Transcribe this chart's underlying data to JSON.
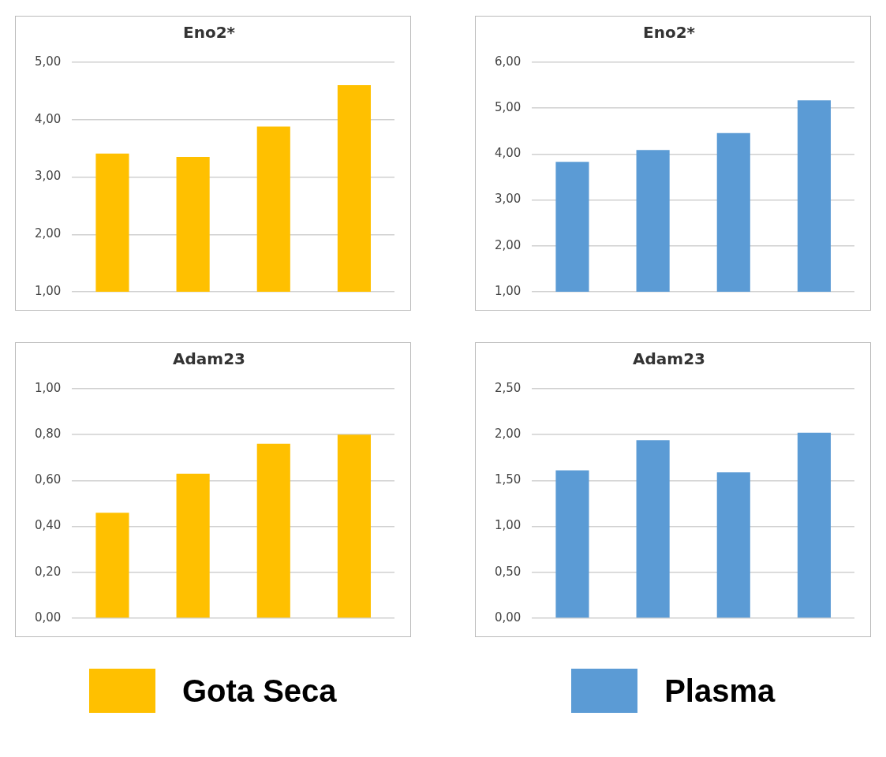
{
  "chart_data": [
    {
      "type": "bar",
      "title": "Eno2*",
      "categories": [
        null,
        null,
        null,
        null
      ],
      "series": [
        {
          "color": "#ffc000",
          "values": [
            3.41,
            3.35,
            3.88,
            4.6
          ]
        }
      ],
      "ylim": [
        1,
        5
      ],
      "yticks": [
        {
          "value": 1,
          "label": "1,00"
        },
        {
          "value": 2,
          "label": "2,00"
        },
        {
          "value": 3,
          "label": "3,00"
        },
        {
          "value": 4,
          "label": "4,00"
        },
        {
          "value": 5,
          "label": "5,00"
        }
      ],
      "grid": "y"
    },
    {
      "type": "bar",
      "title": "Eno2*",
      "categories": [
        null,
        null,
        null,
        null
      ],
      "series": [
        {
          "color": "#5b9bd5",
          "values": [
            3.83,
            4.09,
            4.46,
            5.17
          ]
        }
      ],
      "ylim": [
        1,
        6
      ],
      "yticks": [
        {
          "value": 1,
          "label": "1,00"
        },
        {
          "value": 2,
          "label": "2,00"
        },
        {
          "value": 3,
          "label": "3,00"
        },
        {
          "value": 4,
          "label": "4,00"
        },
        {
          "value": 5,
          "label": "5,00"
        },
        {
          "value": 6,
          "label": "6,00"
        }
      ],
      "grid": "y"
    },
    {
      "type": "bar",
      "title": "Adam23",
      "categories": [
        null,
        null,
        null,
        null
      ],
      "series": [
        {
          "name": "Gota Seca",
          "color": "#ffc000",
          "values": [
            0.46,
            0.63,
            0.76,
            0.8
          ]
        }
      ],
      "ylim": [
        0,
        1
      ],
      "yticks": [
        {
          "value": 0,
          "label": "0,00"
        },
        {
          "value": 0.2,
          "label": "0,20"
        },
        {
          "value": 0.4,
          "label": "0,40"
        },
        {
          "value": 0.6,
          "label": "0,60"
        },
        {
          "value": 0.8,
          "label": "0,80"
        },
        {
          "value": 1,
          "label": "1,00"
        }
      ],
      "grid": "y",
      "legend": "bottom"
    },
    {
      "type": "bar",
      "title": "Adam23",
      "categories": [
        null,
        null,
        null,
        null
      ],
      "series": [
        {
          "name": "Plasma",
          "color": "#5b9bd5",
          "values": [
            1.61,
            1.94,
            1.59,
            2.02
          ]
        }
      ],
      "ylim": [
        0,
        2.5
      ],
      "yticks": [
        {
          "value": 0,
          "label": "0,00"
        },
        {
          "value": 0.5,
          "label": "0,50"
        },
        {
          "value": 1,
          "label": "1,00"
        },
        {
          "value": 1.5,
          "label": "1,50"
        },
        {
          "value": 2,
          "label": "2,00"
        },
        {
          "value": 2.5,
          "label": "2,50"
        }
      ],
      "grid": "y",
      "legend": "bottom"
    }
  ]
}
